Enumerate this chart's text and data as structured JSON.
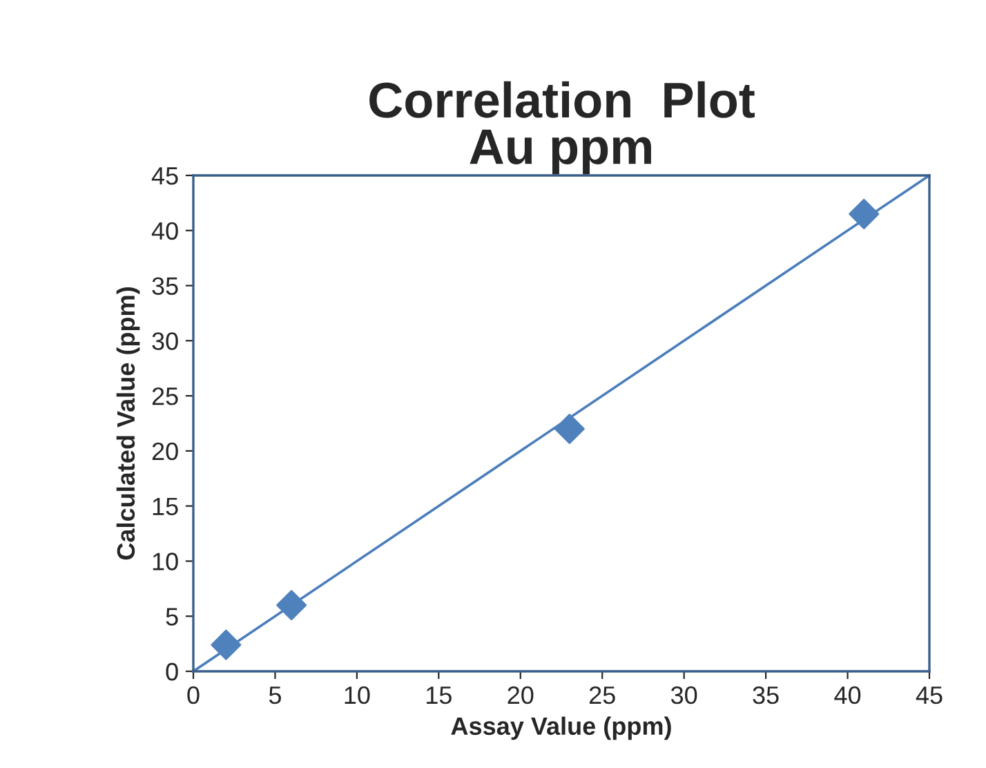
{
  "chart_data": {
    "type": "scatter",
    "title": "Correlation  Plot\nAu ppm",
    "xlabel": "Assay Value (ppm)",
    "ylabel": "Calculated Value (ppm)",
    "x": [
      2,
      6,
      23,
      41
    ],
    "series": [
      {
        "color": "#4f81bd",
        "values": [
          2.4,
          6,
          22,
          41.5
        ],
        "marker": "diamond"
      },
      {
        "type": "line",
        "color": "#4a7ebb",
        "x": [
          0,
          45
        ],
        "values": [
          0,
          45
        ],
        "line_style": "solid",
        "marker": "none"
      }
    ],
    "xlim": [
      0,
      45
    ],
    "ylim": [
      0,
      45
    ],
    "xticks": [
      0,
      5,
      10,
      15,
      20,
      25,
      30,
      35,
      40,
      45
    ],
    "yticks": [
      0,
      5,
      10,
      15,
      20,
      25,
      30,
      35,
      40,
      45
    ],
    "grid": false,
    "legend": false
  }
}
